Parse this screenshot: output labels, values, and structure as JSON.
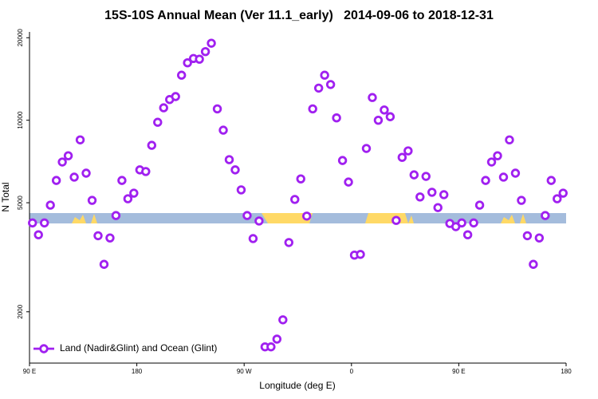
{
  "chart_data": {
    "type": "scatter",
    "title": "15S-10S Annual Mean (Ver 11.1_early)   2014-09-06 to 2018-12-31",
    "x_label": "Longitude (deg E)",
    "y_label": "N Total",
    "log_y": true,
    "legend": "bottom-left",
    "xlim": [
      90,
      540
    ],
    "xticks": [
      {
        "value": 90,
        "label": "90 E"
      },
      180,
      {
        "value": 270,
        "label": "90 W"
      },
      {
        "value": 360,
        "label": "0"
      },
      {
        "value": 450,
        "label": "90 E"
      },
      {
        "value": 540,
        "label": "180"
      }
    ],
    "ylim": [
      1300,
      21000
    ],
    "yticks": [
      2000,
      5000,
      10000,
      20000
    ],
    "series": [
      {
        "name": "Land (Nadir&Glint) and Ocean (Glint)",
        "color": "#a020f0",
        "x": [
          92.5,
          97.5,
          102.5,
          107.5,
          112.5,
          117.5,
          122.5,
          127.5,
          132.5,
          137.5,
          142.5,
          147.5,
          152.5,
          157.5,
          162.5,
          167.5,
          172.5,
          177.5,
          182.5,
          187.5,
          192.5,
          197.5,
          202.5,
          207.5,
          212.5,
          217.5,
          222.5,
          227.5,
          232.5,
          237.5,
          242.5,
          247.5,
          252.5,
          257.5,
          262.5,
          267.5,
          272.5,
          277.5,
          282.5,
          287.5,
          292.5,
          297.5,
          302.5,
          307.5,
          312.5,
          317.5,
          322.5,
          327.5,
          332.5,
          337.5,
          342.5,
          347.5,
          352.5,
          357.5,
          362.5,
          367.5,
          372.5,
          377.5,
          382.5,
          387.5,
          392.5,
          397.5,
          402.5,
          407.5,
          412.5,
          417.5,
          422.5,
          427.5,
          432.5,
          437.5,
          442.5,
          447.5,
          452.5,
          457.5,
          462.5,
          467.5,
          472.5,
          477.5,
          482.5,
          487.5,
          492.5,
          497.5,
          502.5,
          507.5,
          512.5,
          517.5,
          522.5,
          527.5,
          532.5,
          537.5
        ],
        "values": [
          4220,
          3820,
          4220,
          4900,
          6030,
          7040,
          7420,
          6200,
          8480,
          6410,
          5100,
          3790,
          2980,
          3720,
          4490,
          6030,
          5170,
          5420,
          6590,
          6500,
          8100,
          9830,
          11100,
          11900,
          12200,
          14600,
          16200,
          16800,
          16700,
          17800,
          19100,
          11000,
          9200,
          7180,
          6590,
          5570,
          4490,
          3700,
          4290,
          1490,
          1490,
          1590,
          1870,
          3580,
          5140,
          6110,
          4470,
          11000,
          13100,
          14600,
          13500,
          10200,
          7130,
          5950,
          3220,
          3240,
          7890,
          12100,
          10000,
          10900,
          10300,
          4310,
          7320,
          7730,
          6320,
          5250,
          6240,
          5460,
          4800,
          5350,
          4200,
          4090,
          4220,
          3820,
          4220,
          4900,
          6030,
          7040,
          7420,
          6200,
          8480,
          6410,
          5100,
          3790,
          2980,
          3720,
          4490,
          6030,
          5170,
          5420
        ]
      }
    ]
  }
}
